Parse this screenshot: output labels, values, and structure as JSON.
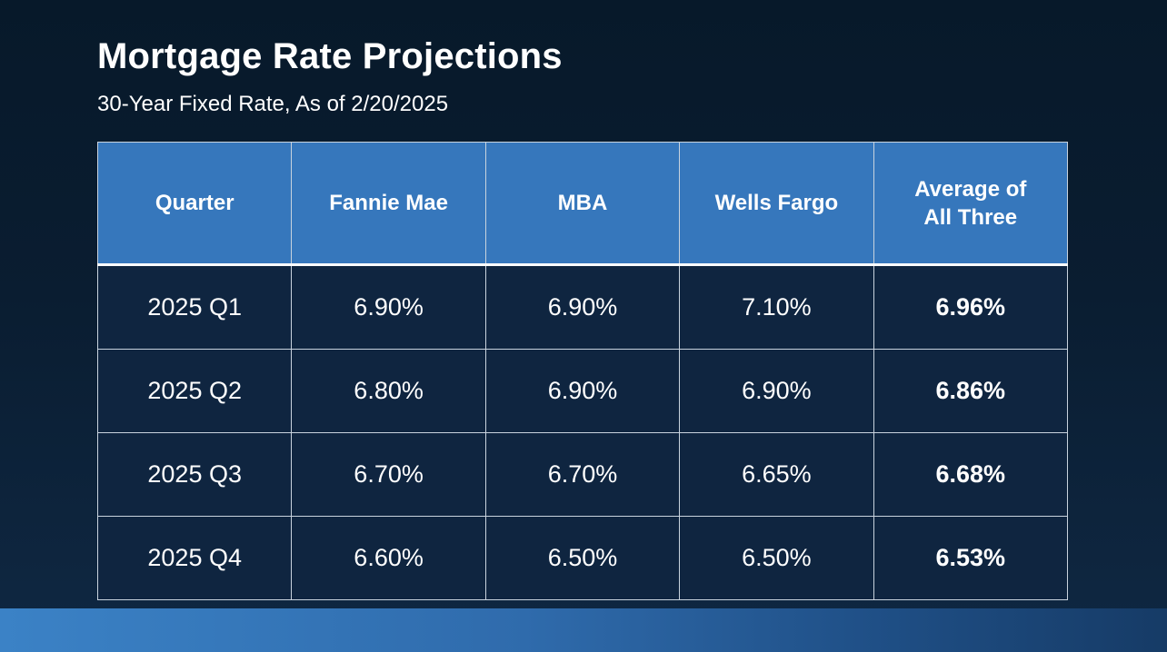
{
  "title": "Mortgage Rate Projections",
  "subtitle": "30-Year Fixed Rate, As of 2/20/2025",
  "chart_data": {
    "type": "table",
    "title": "Mortgage Rate Projections",
    "subtitle": "30-Year Fixed Rate, As of 2/20/2025",
    "columns": [
      "Quarter",
      "Fannie Mae",
      "MBA",
      "Wells Fargo",
      "Average of All Three"
    ],
    "rows": [
      [
        "2025 Q1",
        "6.90%",
        "6.90%",
        "7.10%",
        "6.96%"
      ],
      [
        "2025 Q2",
        "6.80%",
        "6.90%",
        "6.90%",
        "6.86%"
      ],
      [
        "2025 Q3",
        "6.70%",
        "6.70%",
        "6.65%",
        "6.68%"
      ],
      [
        "2025 Q4",
        "6.60%",
        "6.50%",
        "6.50%",
        "6.53%"
      ]
    ]
  },
  "colors": {
    "header_bg": "#3677bc",
    "cell_bg": "#0f2540",
    "page_bg": "#07192a",
    "grid": "#c9d3de",
    "text": "#ffffff"
  }
}
